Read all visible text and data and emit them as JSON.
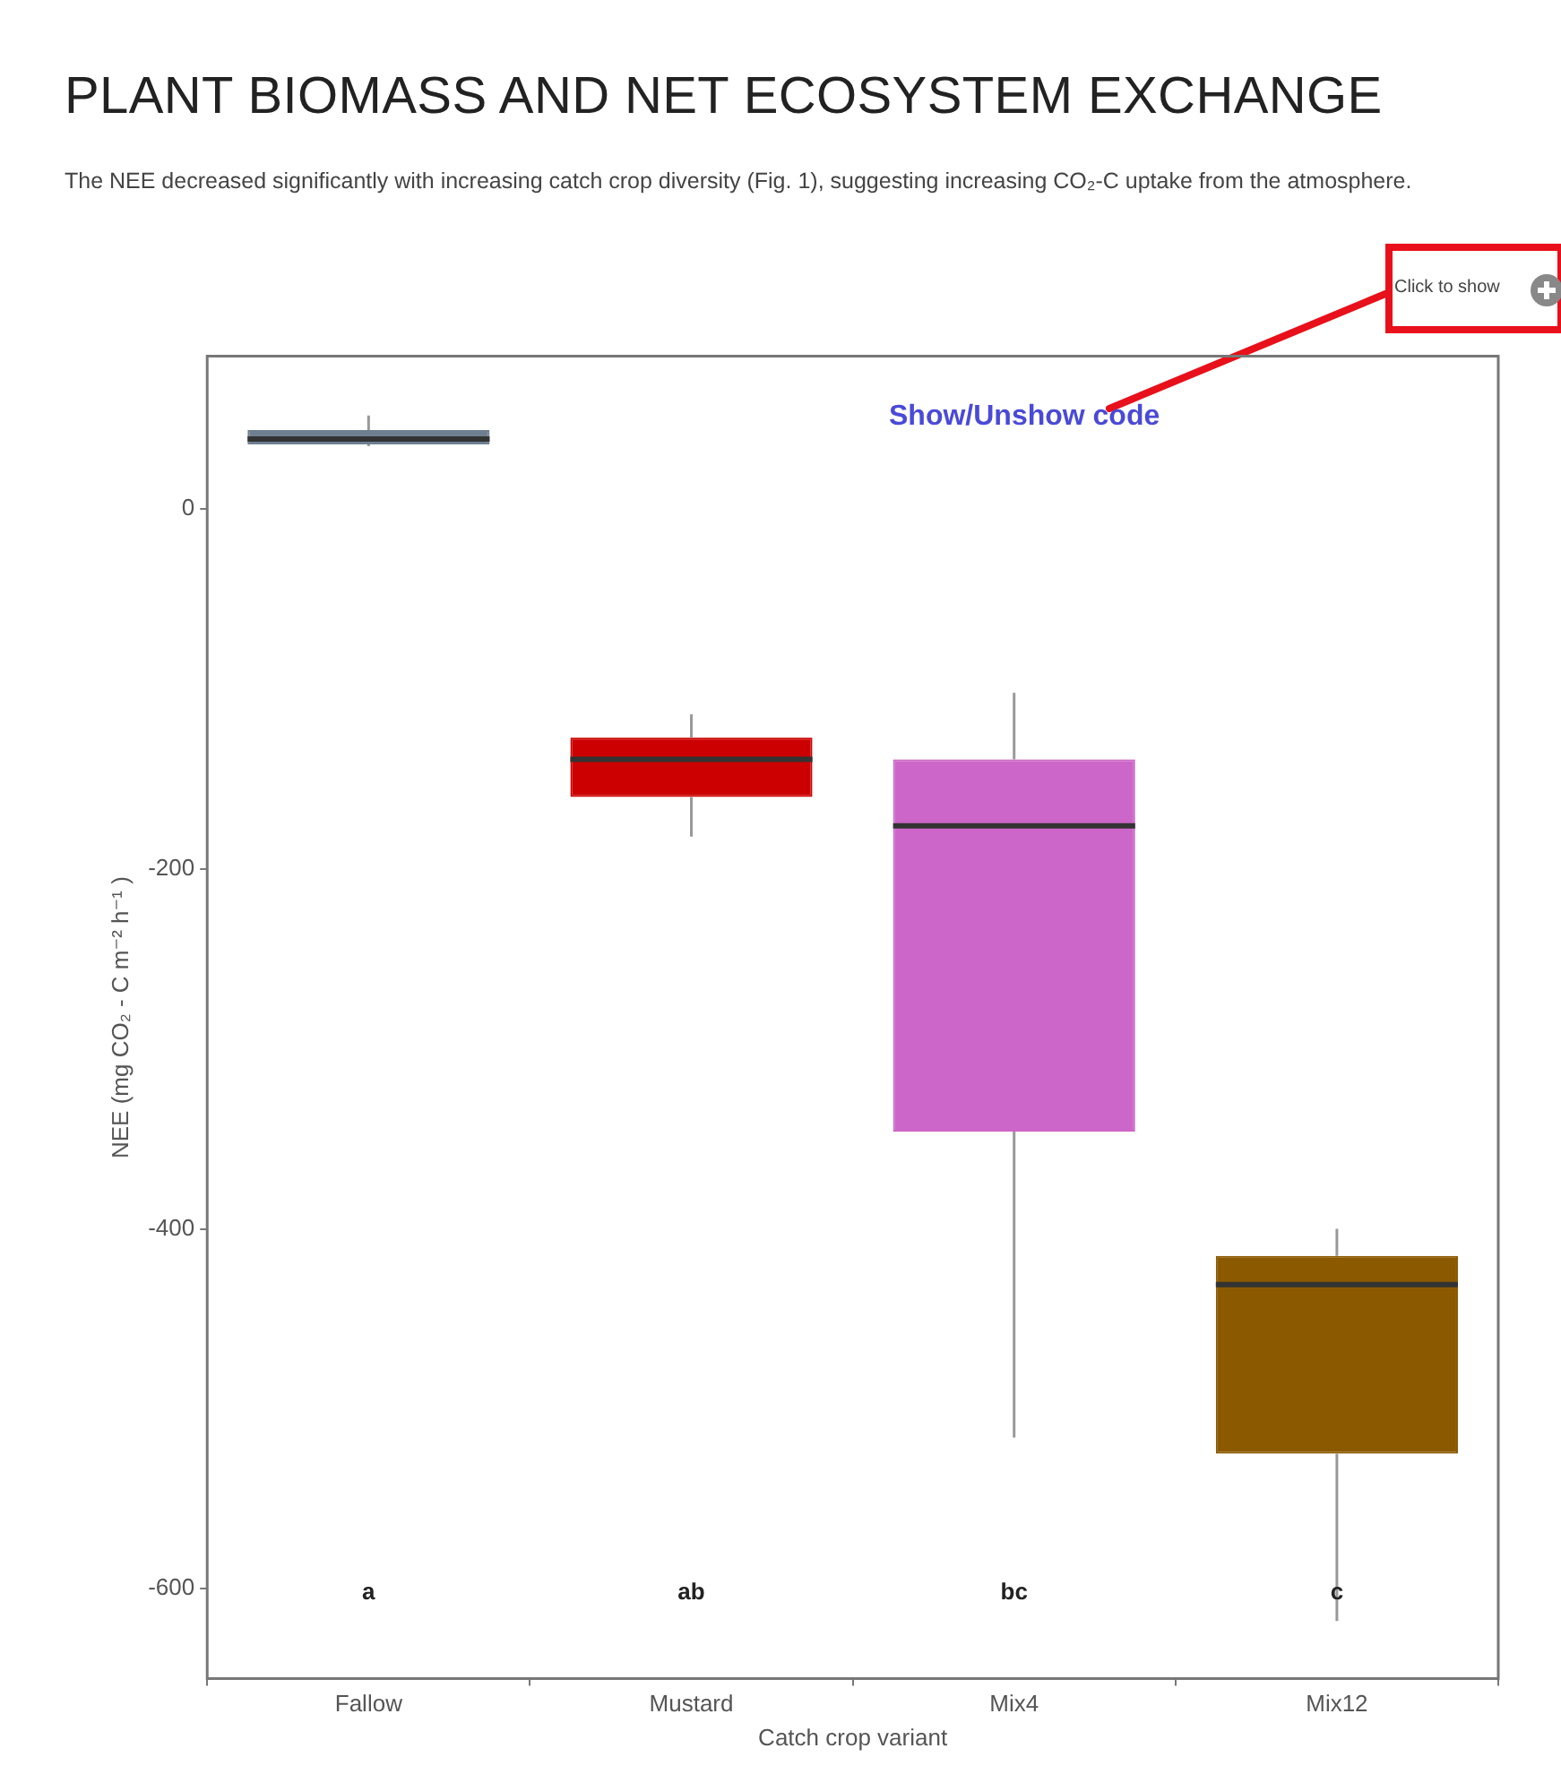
{
  "chart_data": {
    "type": "box",
    "title": "PLANT BIOMASS AND NET ECOSYSTEM EXCHANGE",
    "subtitle": "The NEE decreased significantly with increasing catch crop diversity (Fig. 1), suggesting increasing CO₂-C uptake from the atmosphere.",
    "xlabel": "Catch crop variant",
    "ylabel": "NEE (mg CO₂ - C m⁻² h⁻¹ )",
    "categories": [
      "Fallow",
      "Mustard",
      "Mix4",
      "Mix12"
    ],
    "colors": [
      "#6e7f90",
      "#cc0000",
      "#cc66c8",
      "#8b5a00"
    ],
    "boxes": [
      {
        "low": 35,
        "q1": 36,
        "median": 39,
        "q3": 44,
        "high": 52
      },
      {
        "low": -182,
        "q1": -160,
        "median": -139,
        "q3": -127,
        "high": -114
      },
      {
        "low": -516,
        "q1": -346,
        "median": -176,
        "q3": -139,
        "high": -102
      },
      {
        "low": -618,
        "q1": -525,
        "median": -431,
        "q3": -415,
        "high": -400
      }
    ],
    "ylim": [
      -650,
      85
    ],
    "yticks": [
      -600,
      -400,
      -200,
      0
    ],
    "grid": false,
    "annotations": [
      "Click to show",
      "Show/Unshow code",
      "a",
      "ab",
      "bc",
      "c"
    ]
  }
}
